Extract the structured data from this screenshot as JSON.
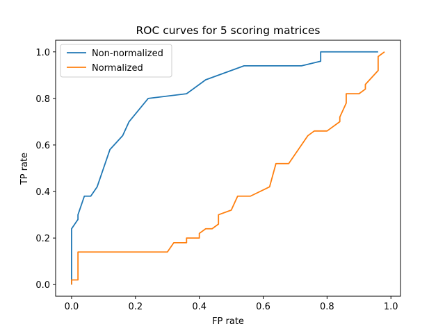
{
  "chart_data": {
    "type": "line",
    "title": "ROC curves for 5 scoring matrices",
    "xlabel": "FP rate",
    "ylabel": "TP rate",
    "xlim": [
      -0.05,
      1.03
    ],
    "ylim": [
      -0.05,
      1.05
    ],
    "xticks": [
      "0.0",
      "0.2",
      "0.4",
      "0.6",
      "0.8",
      "1.0"
    ],
    "yticks": [
      "0.0",
      "0.2",
      "0.4",
      "0.6",
      "0.8",
      "1.0"
    ],
    "grid": false,
    "legend_position": "top-left",
    "series": [
      {
        "name": "Non-normalized",
        "color": "#1f77b4",
        "x": [
          0.0,
          0.0,
          0.02,
          0.02,
          0.04,
          0.06,
          0.08,
          0.1,
          0.12,
          0.16,
          0.18,
          0.24,
          0.36,
          0.42,
          0.54,
          0.72,
          0.78,
          0.78,
          0.96
        ],
        "y": [
          0.0,
          0.24,
          0.28,
          0.3,
          0.38,
          0.38,
          0.42,
          0.5,
          0.58,
          0.64,
          0.7,
          0.8,
          0.82,
          0.88,
          0.94,
          0.94,
          0.96,
          1.0,
          1.0
        ]
      },
      {
        "name": "Normalized",
        "color": "#ff7f0e",
        "x": [
          0.0,
          0.0,
          0.02,
          0.02,
          0.04,
          0.3,
          0.32,
          0.36,
          0.36,
          0.4,
          0.4,
          0.42,
          0.44,
          0.46,
          0.46,
          0.5,
          0.52,
          0.56,
          0.62,
          0.64,
          0.68,
          0.74,
          0.76,
          0.8,
          0.84,
          0.84,
          0.86,
          0.86,
          0.9,
          0.92,
          0.92,
          0.96,
          0.96,
          0.98
        ],
        "y": [
          0.0,
          0.02,
          0.02,
          0.14,
          0.14,
          0.14,
          0.18,
          0.18,
          0.2,
          0.2,
          0.22,
          0.24,
          0.24,
          0.26,
          0.3,
          0.32,
          0.38,
          0.38,
          0.42,
          0.52,
          0.52,
          0.64,
          0.66,
          0.66,
          0.7,
          0.72,
          0.78,
          0.82,
          0.82,
          0.84,
          0.86,
          0.92,
          0.98,
          1.0
        ]
      }
    ]
  }
}
